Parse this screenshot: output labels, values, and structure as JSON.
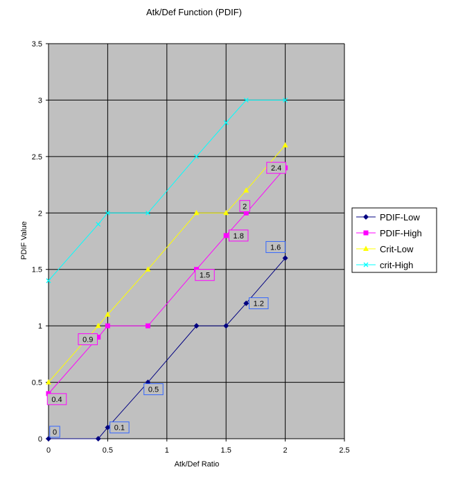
{
  "chart_data": {
    "type": "line",
    "title": "Atk/Def Function (PDIF)",
    "xlabel": "Atk/Def Ratio",
    "ylabel": "PDIF Value",
    "xlim": [
      0,
      2.5
    ],
    "ylim": [
      0,
      3.5
    ],
    "xticks": [
      0,
      0.5,
      1,
      1.5,
      2,
      2.5
    ],
    "yticks": [
      0,
      0.5,
      1,
      1.5,
      2,
      2.5,
      3,
      3.5
    ],
    "xtick_labels": [
      "0",
      "0.5",
      "1",
      "1.5",
      "2",
      "2.5"
    ],
    "ytick_labels": [
      "0",
      "0.5",
      "1",
      "1.5",
      "2",
      "2.5",
      "3",
      "3.5"
    ],
    "grid": true,
    "plot_background": "#c0c0c0",
    "legend_position": "right",
    "series": [
      {
        "name": "PDIF-Low",
        "color": "#000080",
        "marker": "diamond",
        "points": [
          [
            0,
            0
          ],
          [
            0.42,
            0
          ],
          [
            0.5,
            0.1
          ],
          [
            0.84,
            0.5
          ],
          [
            1.25,
            1
          ],
          [
            1.5,
            1
          ],
          [
            1.67,
            1.2
          ],
          [
            2,
            1.6
          ]
        ]
      },
      {
        "name": "PDIF-High",
        "color": "#ff00ff",
        "marker": "square",
        "points": [
          [
            0,
            0.4
          ],
          [
            0.42,
            0.9
          ],
          [
            0.5,
            1
          ],
          [
            0.84,
            1
          ],
          [
            1.25,
            1.5
          ],
          [
            1.5,
            1.8
          ],
          [
            1.67,
            2
          ],
          [
            2,
            2.4
          ]
        ]
      },
      {
        "name": "Crit-Low",
        "color": "#ffff00",
        "marker": "triangle",
        "points": [
          [
            0,
            0.5
          ],
          [
            0.42,
            1
          ],
          [
            0.5,
            1.1
          ],
          [
            0.84,
            1.5
          ],
          [
            1.25,
            2
          ],
          [
            1.5,
            2
          ],
          [
            1.67,
            2.2
          ],
          [
            2,
            2.6
          ]
        ]
      },
      {
        "name": "crit-High",
        "color": "#00ffff",
        "marker": "x",
        "points": [
          [
            0,
            1.4
          ],
          [
            0.42,
            1.9
          ],
          [
            0.5,
            2
          ],
          [
            0.84,
            2
          ],
          [
            1.25,
            2.5
          ],
          [
            1.5,
            2.8
          ],
          [
            1.67,
            3
          ],
          [
            2,
            3
          ]
        ]
      }
    ],
    "data_labels": [
      {
        "series": "PDIF-Low",
        "text": "0",
        "x": 0,
        "y": 0
      },
      {
        "series": "PDIF-Low",
        "text": "0.1",
        "x": 0.5,
        "y": 0.1
      },
      {
        "series": "PDIF-Low",
        "text": "0.5",
        "x": 0.84,
        "y": 0.5
      },
      {
        "series": "PDIF-Low",
        "text": "1.2",
        "x": 1.67,
        "y": 1.2
      },
      {
        "series": "PDIF-Low",
        "text": "1.6",
        "x": 2,
        "y": 1.6
      },
      {
        "series": "PDIF-High",
        "text": "0.4",
        "x": 0,
        "y": 0.4
      },
      {
        "series": "PDIF-High",
        "text": "0.9",
        "x": 0.42,
        "y": 0.9
      },
      {
        "series": "PDIF-High",
        "text": "1.5",
        "x": 1.25,
        "y": 1.5
      },
      {
        "series": "PDIF-High",
        "text": "1.8",
        "x": 1.5,
        "y": 1.8
      },
      {
        "series": "PDIF-High",
        "text": "2",
        "x": 1.67,
        "y": 2
      },
      {
        "series": "PDIF-High",
        "text": "2.4",
        "x": 2,
        "y": 2.4
      }
    ]
  }
}
